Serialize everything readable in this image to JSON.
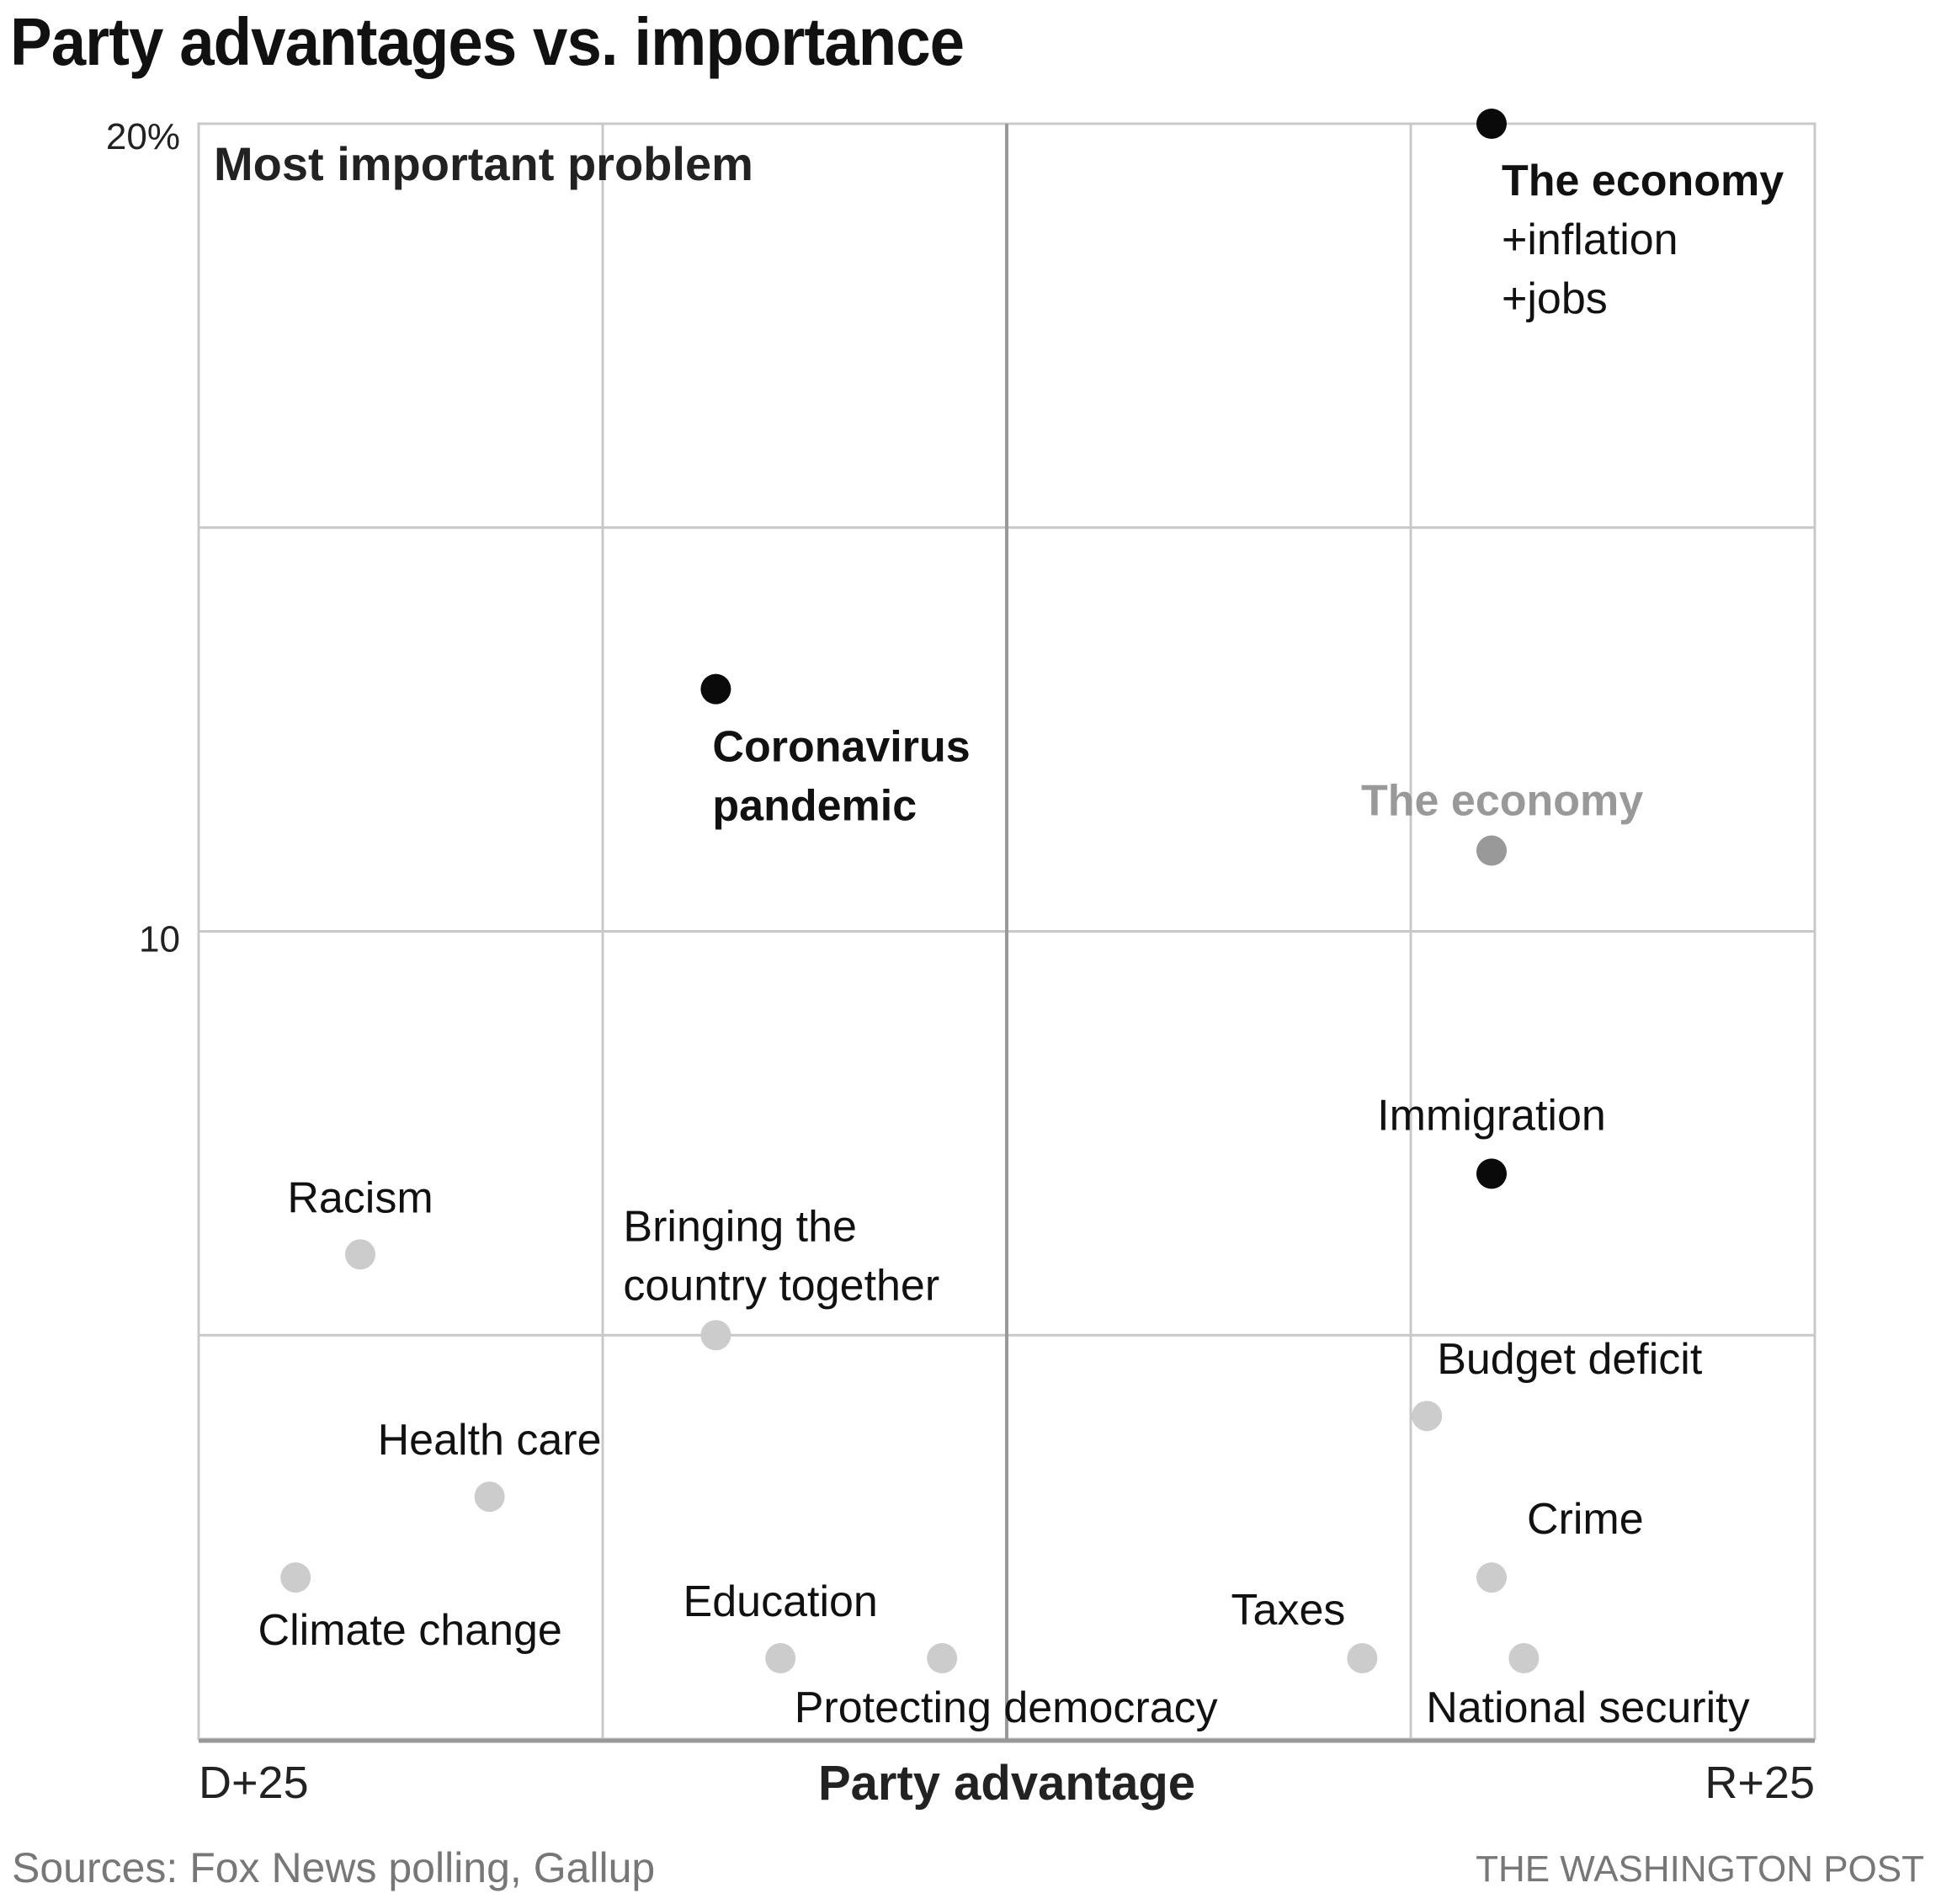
{
  "title": "Party advantages vs. importance",
  "source": "Sources: Fox News polling, Gallup",
  "credit": "THE WASHINGTON POST",
  "colors": {
    "highlight": "#0a0a0a",
    "economy_gray": "#999999",
    "other": "#cccccc",
    "grid": "#c8c8c8",
    "center_axis": "#999999"
  },
  "chart_data": {
    "type": "scatter",
    "title": "Party advantages vs. importance",
    "panel_label": "Most important problem",
    "xlabel": "Party advantage",
    "ylabel": "Most important problem (%)",
    "xlim": [
      -25,
      25
    ],
    "ylim": [
      0,
      20
    ],
    "x_end_labels": {
      "left": "D+25",
      "right": "R+25"
    },
    "x_gridlines": [
      -12.5,
      0,
      12.5
    ],
    "y_gridlines": [
      5,
      10,
      15,
      20
    ],
    "y_ticks": [
      {
        "value": 20,
        "label": "20%"
      },
      {
        "value": 10,
        "label": "10"
      }
    ],
    "grid": true,
    "points": [
      {
        "name": "The economy +inflation +jobs",
        "lines": [
          "The economy",
          "+inflation",
          "+jobs"
        ],
        "x": 15,
        "y": 20,
        "group": "highlight",
        "label_pos": "below-right"
      },
      {
        "name": "Coronavirus pandemic",
        "lines": [
          "Coronavirus",
          "pandemic"
        ],
        "x": -9,
        "y": 13,
        "group": "highlight",
        "label_pos": "below"
      },
      {
        "name": "The economy",
        "lines": [
          "The economy"
        ],
        "x": 15,
        "y": 11,
        "group": "economy",
        "label_pos": "above"
      },
      {
        "name": "Immigration",
        "lines": [
          "Immigration"
        ],
        "x": 15,
        "y": 7,
        "group": "highlight-plain",
        "label_pos": "above"
      },
      {
        "name": "Racism",
        "lines": [
          "Racism"
        ],
        "x": -20,
        "y": 6,
        "group": "other",
        "label_pos": "above"
      },
      {
        "name": "Bringing the country together",
        "lines": [
          "Bringing the",
          "country together"
        ],
        "x": -9,
        "y": 5,
        "group": "other",
        "label_pos": "above"
      },
      {
        "name": "Budget deficit",
        "lines": [
          "Budget deficit"
        ],
        "x": 13,
        "y": 4,
        "group": "other",
        "label_pos": "above-right"
      },
      {
        "name": "Health care",
        "lines": [
          "Health care"
        ],
        "x": -16,
        "y": 3,
        "group": "other",
        "label_pos": "above"
      },
      {
        "name": "Climate change",
        "lines": [
          "Climate change"
        ],
        "x": -22,
        "y": 2,
        "group": "other",
        "label_pos": "below"
      },
      {
        "name": "Crime",
        "lines": [
          "Crime"
        ],
        "x": 15,
        "y": 2,
        "group": "other",
        "label_pos": "above-right"
      },
      {
        "name": "Education",
        "lines": [
          "Education"
        ],
        "x": -7,
        "y": 1,
        "group": "other",
        "label_pos": "above"
      },
      {
        "name": "Protecting democracy",
        "lines": [
          "Protecting democracy"
        ],
        "x": -2,
        "y": 1,
        "group": "other",
        "label_pos": "below"
      },
      {
        "name": "Taxes",
        "lines": [
          "Taxes"
        ],
        "x": 11,
        "y": 1,
        "group": "other",
        "label_pos": "above-left"
      },
      {
        "name": "National security",
        "lines": [
          "National security"
        ],
        "x": 16,
        "y": 1,
        "group": "other",
        "label_pos": "below"
      }
    ]
  }
}
